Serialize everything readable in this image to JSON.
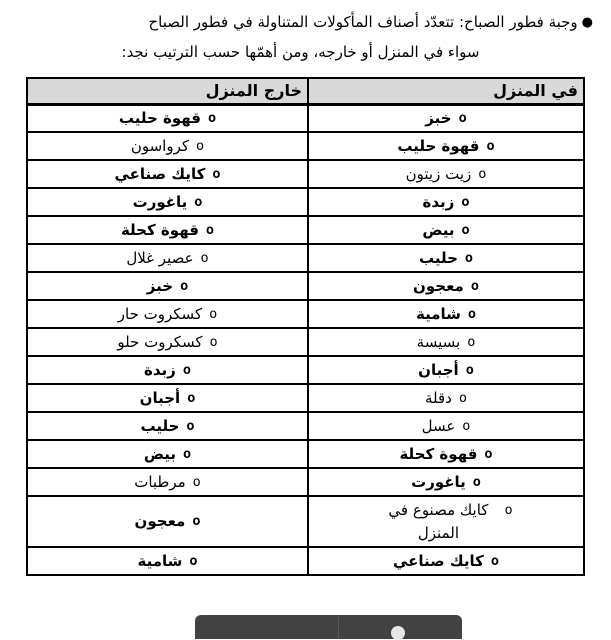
{
  "intro": {
    "bullet": "●",
    "line1": "وجبة فطور الصباح: تتعدّد أصناف المأكولات المتناولة في فطور الصباح",
    "line2": "سواء في المنزل أو خارجه، ومن أهمّها حسب الترتيب نجد:"
  },
  "table": {
    "bullet_char": "o",
    "header_bg": "#d9d9d9",
    "border_color": "#000000",
    "columns": [
      {
        "key": "home",
        "label": "في المنزل"
      },
      {
        "key": "outside",
        "label": "خارج المنزل"
      }
    ],
    "rows": [
      {
        "home": {
          "text": "خبز",
          "bold": true
        },
        "outside": {
          "text": "قهوة حليب",
          "bold": true
        }
      },
      {
        "home": {
          "text": "قهوة حليب",
          "bold": true
        },
        "outside": {
          "text": "كرواسون",
          "bold": false
        }
      },
      {
        "home": {
          "text": "زيت زيتون",
          "bold": false
        },
        "outside": {
          "text": "كايك صناعي",
          "bold": true
        }
      },
      {
        "home": {
          "text": "زبدة",
          "bold": true
        },
        "outside": {
          "text": "ياغورت",
          "bold": true
        }
      },
      {
        "home": {
          "text": "بيض",
          "bold": true
        },
        "outside": {
          "text": "قهوة كحلة",
          "bold": true
        }
      },
      {
        "home": {
          "text": "حليب",
          "bold": true
        },
        "outside": {
          "text": "عصير غلال",
          "bold": false
        }
      },
      {
        "home": {
          "text": "معجون",
          "bold": true
        },
        "outside": {
          "text": "خبز",
          "bold": true
        }
      },
      {
        "home": {
          "text": "شامية",
          "bold": true
        },
        "outside": {
          "text": "كسكروت حار",
          "bold": false
        }
      },
      {
        "home": {
          "text": "بسيسة",
          "bold": false
        },
        "outside": {
          "text": "كسكروت حلو",
          "bold": false
        }
      },
      {
        "home": {
          "text": "أجبان",
          "bold": true
        },
        "outside": {
          "text": "زبدة",
          "bold": true
        }
      },
      {
        "home": {
          "text": "دقلة",
          "bold": false
        },
        "outside": {
          "text": "أجبان",
          "bold": true
        }
      },
      {
        "home": {
          "text": "عسل",
          "bold": false
        },
        "outside": {
          "text": "حليب",
          "bold": true
        }
      },
      {
        "home": {
          "text": "قهوة كحلة",
          "bold": true
        },
        "outside": {
          "text": "بيض",
          "bold": true
        }
      },
      {
        "home": {
          "text": "ياغورت",
          "bold": true
        },
        "outside": {
          "text": "مرطبات",
          "bold": false
        }
      },
      {
        "home": {
          "text": "كايك مصنوع في المنزل",
          "bold": false,
          "wrap": true
        },
        "outside": {
          "text": "معجون",
          "bold": true
        }
      },
      {
        "home": {
          "text": "كايك صناعي",
          "bold": true
        },
        "outside": {
          "text": "شامية",
          "bold": true
        }
      }
    ]
  },
  "overlay_toolbar": {
    "background": "#424242",
    "button_color": "#e6e6e6"
  }
}
